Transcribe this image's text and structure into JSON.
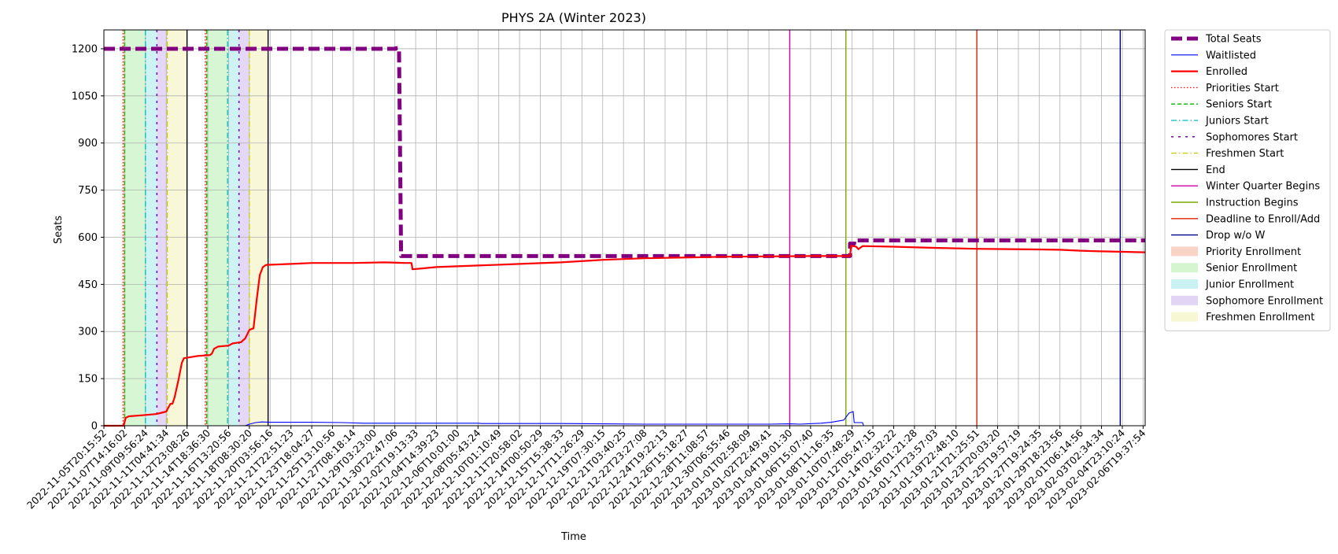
{
  "chart_data": {
    "type": "line",
    "title": "PHYS 2A (Winter 2023)",
    "xlabel": "Time",
    "ylabel": "Seats",
    "ylim": [
      0,
      1260
    ],
    "y_ticks": [
      0,
      150,
      300,
      450,
      600,
      750,
      900,
      1050,
      1200
    ],
    "x_tick_labels": [
      "2022-11-05T20:15:52",
      "2022-11-07T14:16:02",
      "2022-11-09T09:56:24",
      "2022-11-11T04:41:34",
      "2022-11-12T23:08:26",
      "2022-11-14T18:36:30",
      "2022-11-16T13:20:56",
      "2022-11-18T08:30:20",
      "2022-11-20T03:56:16",
      "2022-11-21T22:51:23",
      "2022-11-23T18:04:27",
      "2022-11-25T13:10:56",
      "2022-11-27T08:18:14",
      "2022-11-29T03:23:00",
      "2022-11-30T22:47:06",
      "2022-12-02T19:13:33",
      "2022-12-04T14:39:23",
      "2022-12-06T10:01:00",
      "2022-12-08T05:43:24",
      "2022-12-10T01:10:49",
      "2022-12-11T20:58:02",
      "2022-12-14T00:50:29",
      "2022-12-15T15:38:33",
      "2022-12-17T11:26:29",
      "2022-12-19T07:30:15",
      "2022-12-21T03:40:25",
      "2022-12-22T23:27:08",
      "2022-12-24T19:22:13",
      "2022-12-26T15:18:27",
      "2022-12-28T11:08:57",
      "2022-12-30T06:55:46",
      "2023-01-01T02:58:09",
      "2023-01-02T22:49:41",
      "2023-01-04T19:01:30",
      "2023-01-06T15:07:40",
      "2023-01-08T11:16:35",
      "2023-01-10T07:48:29",
      "2023-01-12T05:47:15",
      "2023-01-14T02:32:22",
      "2023-01-16T01:21:28",
      "2023-01-17T23:57:03",
      "2023-01-19T22:48:10",
      "2023-01-21T21:25:51",
      "2023-01-23T20:03:20",
      "2023-01-25T19:57:19",
      "2023-01-27T19:24:35",
      "2023-01-29T18:23:56",
      "2023-02-01T06:14:56",
      "2023-02-03T02:34:34",
      "2023-02-04T23:10:24",
      "2023-02-06T19:37:54"
    ],
    "x_range": [
      0,
      50.1
    ],
    "grid": true,
    "legend_position": "outside-right",
    "series": [
      {
        "name": "Total Seats",
        "color": "#800080",
        "style": "dashed-thick",
        "points": [
          [
            0,
            1200
          ],
          [
            14.05,
            1200
          ],
          [
            14.05,
            1202
          ],
          [
            14.2,
            1202
          ],
          [
            14.2,
            1190
          ],
          [
            14.3,
            545
          ],
          [
            14.3,
            540
          ],
          [
            35.9,
            540
          ],
          [
            35.9,
            580
          ],
          [
            36.1,
            580
          ],
          [
            36.1,
            590
          ],
          [
            50.1,
            590
          ]
        ]
      },
      {
        "name": "Waitlisted",
        "color": "#0000ff",
        "style": "solid-thin",
        "points": [
          [
            0,
            0
          ],
          [
            6.8,
            0
          ],
          [
            7.0,
            5
          ],
          [
            7.3,
            10
          ],
          [
            7.6,
            12
          ],
          [
            8.0,
            11
          ],
          [
            10,
            11
          ],
          [
            11.5,
            10
          ],
          [
            12.5,
            8
          ],
          [
            15,
            8
          ],
          [
            18,
            8
          ],
          [
            18.2,
            7
          ],
          [
            22,
            7
          ],
          [
            24,
            6
          ],
          [
            26,
            5
          ],
          [
            30,
            5
          ],
          [
            32,
            5
          ],
          [
            33,
            6
          ],
          [
            33.5,
            5
          ],
          [
            34.5,
            8
          ],
          [
            35,
            11
          ],
          [
            35.6,
            18
          ],
          [
            35.85,
            40
          ],
          [
            36.05,
            45
          ],
          [
            36.1,
            10
          ],
          [
            36.5,
            10
          ],
          [
            36.55,
            0
          ],
          [
            50.1,
            0
          ]
        ]
      },
      {
        "name": "Enrolled",
        "color": "#ff0000",
        "style": "solid-thick",
        "points": [
          [
            0,
            0
          ],
          [
            0.95,
            0
          ],
          [
            1.05,
            25
          ],
          [
            1.2,
            30
          ],
          [
            1.8,
            33
          ],
          [
            2.5,
            37
          ],
          [
            2.7,
            40
          ],
          [
            3.0,
            45
          ],
          [
            3.2,
            70
          ],
          [
            3.3,
            70
          ],
          [
            3.4,
            90
          ],
          [
            3.6,
            150
          ],
          [
            3.75,
            200
          ],
          [
            3.85,
            215
          ],
          [
            4.5,
            222
          ],
          [
            5.1,
            225
          ],
          [
            5.2,
            230
          ],
          [
            5.3,
            245
          ],
          [
            5.5,
            252
          ],
          [
            6.0,
            255
          ],
          [
            6.2,
            262
          ],
          [
            6.6,
            266
          ],
          [
            6.8,
            278
          ],
          [
            7.0,
            305
          ],
          [
            7.2,
            310
          ],
          [
            7.35,
            400
          ],
          [
            7.5,
            480
          ],
          [
            7.65,
            505
          ],
          [
            7.8,
            512
          ],
          [
            9,
            515
          ],
          [
            10,
            518
          ],
          [
            12,
            518
          ],
          [
            13.5,
            520
          ],
          [
            14.5,
            518
          ],
          [
            14.8,
            518
          ],
          [
            14.85,
            498
          ],
          [
            15.2,
            500
          ],
          [
            16,
            505
          ],
          [
            18,
            510
          ],
          [
            20,
            515
          ],
          [
            22,
            520
          ],
          [
            24,
            528
          ],
          [
            26,
            533
          ],
          [
            30,
            538
          ],
          [
            34,
            540
          ],
          [
            35.9,
            540
          ],
          [
            35.95,
            573
          ],
          [
            36.2,
            570
          ],
          [
            36.3,
            562
          ],
          [
            36.5,
            572
          ],
          [
            38,
            570
          ],
          [
            40,
            566
          ],
          [
            42,
            563
          ],
          [
            45,
            561
          ],
          [
            46,
            560
          ],
          [
            47,
            557
          ],
          [
            48,
            555
          ],
          [
            50.1,
            552
          ]
        ]
      }
    ],
    "vertical_lines": [
      {
        "name": "Priorities Start",
        "x": 0.92,
        "color": "#ff0000",
        "dash": "dotted"
      },
      {
        "name": "Seniors Start",
        "x": 1.0,
        "color": "#00bb00",
        "dash": "dashed"
      },
      {
        "name": "Juniors Start",
        "x": 2.0,
        "color": "#00bbbb",
        "dash": "dashdot"
      },
      {
        "name": "Sophomores Start",
        "x": 2.55,
        "color": "#6a0dad",
        "dash": "densedot"
      },
      {
        "name": "Freshmen Start",
        "x": 3.05,
        "color": "#cccc00",
        "dash": "dashdot"
      },
      {
        "name": "End",
        "x": 4.0,
        "color": "#000000",
        "dash": "solid"
      },
      {
        "name": "Priorities Start",
        "x": 4.88,
        "color": "#ff0000",
        "dash": "dotted"
      },
      {
        "name": "Seniors Start",
        "x": 4.95,
        "color": "#00bb00",
        "dash": "dashed"
      },
      {
        "name": "Juniors Start",
        "x": 5.95,
        "color": "#00bbbb",
        "dash": "dashdot"
      },
      {
        "name": "Sophomores Start",
        "x": 6.5,
        "color": "#6a0dad",
        "dash": "densedot"
      },
      {
        "name": "Freshmen Start",
        "x": 7.0,
        "color": "#cccc00",
        "dash": "dashdot"
      },
      {
        "name": "End",
        "x": 7.9,
        "color": "#000000",
        "dash": "solid"
      },
      {
        "name": "Winter Quarter Begins",
        "x": 33.0,
        "color": "#cc00aa",
        "dash": "solid"
      },
      {
        "name": "Instruction Begins",
        "x": 35.7,
        "color": "#77aa00",
        "dash": "solid"
      },
      {
        "name": "Deadline to Enroll/Add",
        "x": 42.0,
        "color": "#dd2200",
        "dash": "solid"
      },
      {
        "name": "Drop w/o W",
        "x": 48.9,
        "color": "#000088",
        "dash": "solid"
      }
    ],
    "shaded_regions": [
      {
        "name": "Priority Enrollment",
        "x0": 0.92,
        "x1": 1.0,
        "color": "#f4b6a0"
      },
      {
        "name": "Senior Enrollment",
        "x0": 1.0,
        "x1": 2.0,
        "color": "#b7eeb0"
      },
      {
        "name": "Junior Enrollment",
        "x0": 2.0,
        "x1": 2.55,
        "color": "#a6eaea"
      },
      {
        "name": "Sophomore Enrollment",
        "x0": 2.55,
        "x1": 3.05,
        "color": "#cdb8ee"
      },
      {
        "name": "Freshmen Enrollment",
        "x0": 3.05,
        "x1": 4.0,
        "color": "#f2f2b8"
      },
      {
        "name": "Priority Enrollment",
        "x0": 4.88,
        "x1": 4.95,
        "color": "#f4b6a0"
      },
      {
        "name": "Senior Enrollment",
        "x0": 4.95,
        "x1": 5.95,
        "color": "#b7eeb0"
      },
      {
        "name": "Junior Enrollment",
        "x0": 5.95,
        "x1": 6.5,
        "color": "#a6eaea"
      },
      {
        "name": "Sophomore Enrollment",
        "x0": 6.5,
        "x1": 7.0,
        "color": "#cdb8ee"
      },
      {
        "name": "Freshmen Enrollment",
        "x0": 7.0,
        "x1": 7.9,
        "color": "#f2f2b8"
      }
    ],
    "legend": [
      {
        "label": "Total Seats",
        "kind": "line",
        "color": "#800080",
        "dash": "dashed-thick"
      },
      {
        "label": "Waitlisted",
        "kind": "line",
        "color": "#0000ff",
        "dash": "solid-thin"
      },
      {
        "label": "Enrolled",
        "kind": "line",
        "color": "#ff0000",
        "dash": "solid-thick"
      },
      {
        "label": "Priorities Start",
        "kind": "line",
        "color": "#ff0000",
        "dash": "dotted"
      },
      {
        "label": "Seniors Start",
        "kind": "line",
        "color": "#00bb00",
        "dash": "dashed"
      },
      {
        "label": "Juniors Start",
        "kind": "line",
        "color": "#00bbbb",
        "dash": "dashdot"
      },
      {
        "label": "Sophomores Start",
        "kind": "line",
        "color": "#6a0dad",
        "dash": "densedot"
      },
      {
        "label": "Freshmen Start",
        "kind": "line",
        "color": "#cccc00",
        "dash": "dashdot"
      },
      {
        "label": "End",
        "kind": "line",
        "color": "#000000",
        "dash": "solid"
      },
      {
        "label": "Winter Quarter Begins",
        "kind": "line",
        "color": "#cc00aa",
        "dash": "solid"
      },
      {
        "label": "Instruction Begins",
        "kind": "line",
        "color": "#77aa00",
        "dash": "solid"
      },
      {
        "label": "Deadline to Enroll/Add",
        "kind": "line",
        "color": "#dd2200",
        "dash": "solid"
      },
      {
        "label": "Drop w/o W",
        "kind": "line",
        "color": "#000088",
        "dash": "solid"
      },
      {
        "label": "Priority Enrollment",
        "kind": "patch",
        "color": "#f4b6a0"
      },
      {
        "label": "Senior Enrollment",
        "kind": "patch",
        "color": "#b7eeb0"
      },
      {
        "label": "Junior Enrollment",
        "kind": "patch",
        "color": "#a6eaea"
      },
      {
        "label": "Sophomore Enrollment",
        "kind": "patch",
        "color": "#cdb8ee"
      },
      {
        "label": "Freshmen Enrollment",
        "kind": "patch",
        "color": "#f2f2b8"
      }
    ]
  }
}
